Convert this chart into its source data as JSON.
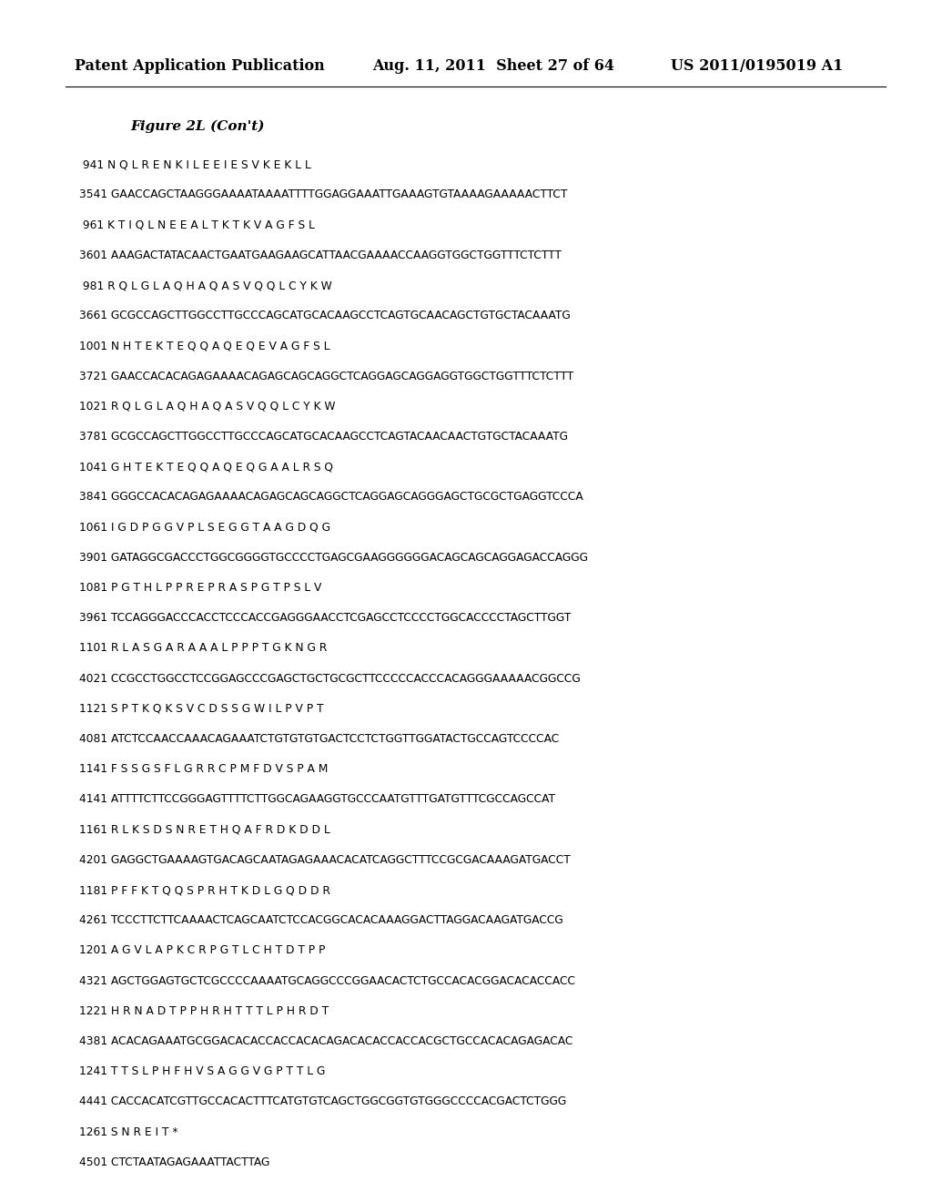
{
  "header_left": "Patent Application Publication",
  "header_middle": "Aug. 11, 2011  Sheet 27 of 64",
  "header_right": "US 2011/0195019 A1",
  "figure_label": "Figure 2L (Con't)",
  "lines": [
    " 941 N Q L R E N K I L E E I E S V K E K L L",
    "3541 GAACCAGCTAAGGGAAAATAAAATTTTGGAGGAAATTGAAAGTGTAAAAGAAAAACTTCT",
    " 961 K T I Q L N E E A L T K T K V A G F S L",
    "3601 AAAGACTATACAACTGAATGAAGAAGCATTAACGAAAACCAAGGTGGCTGGTTTCTCTTT",
    " 981 R Q L G L A Q H A Q A S V Q Q L C Y K W",
    "3661 GCGCCAGCTTGGCCTTGCCCAGCATGCACAAGCCTCAGTGCAACAGCTGTGCTACAAATG",
    "1001 N H T E K T E Q Q A Q E Q E V A G F S L",
    "3721 GAACCACACAGAGAAAACAGAGCAGCAGGCTCAGGAGCAGGAGGTGGCTGGTTTCTCTTT",
    "1021 R Q L G L A Q H A Q A S V Q Q L C Y K W",
    "3781 GCGCCAGCTTGGCCTTGCCCAGCATGCACAAGCCTCAGTACAACAACTGTGCTACAAATG",
    "1041 G H T E K T E Q Q A Q E Q G A A L R S Q",
    "3841 GGGCCACACAGAGAAAACAGAGCAGCAGGCTCAGGAGCAGGGAGCTGCGCTGAGGTCCCA",
    "1061 I G D P G G V P L S E G G T A A G D Q G",
    "3901 GATAGGCGACCCTGGCGGGGTGCCCCTGAGCGAAGGGGGGACAGCAGCAGGAGACCAGGG",
    "1081 P G T H L P P R E P R A S P G T P S L V",
    "3961 TCCAGGGACCCACCTCCCACCGAGGGAACCTCGAGCCTCCCCTGGCACCCCTAGCTTGGT",
    "1101 R L A S G A R A A A L P P P T G K N G R",
    "4021 CCGCCTGGCCTCCGGAGCCCGAGCTGCTGCGCTTCCCCCACCCACAGGGAAAAACGGCCG",
    "1121 S P T K Q K S V C D S S G W I L P V P T",
    "4081 ATCTCCAACCAAACAGAAATCTGTGTGTGACTCCTCTGGTTGGATACTGCCAGTCCCCAC",
    "1141 F S S G S F L G R R C P M F D V S P A M",
    "4141 ATTTTCTTCCGGGAGTTTTCTTGGCAGAAGGTGCCCAATGTTTGATGTTTCGCCAGCCAT",
    "1161 R L K S D S N R E T H Q A F R D K D D L",
    "4201 GAGGCTGAAAAGTGACAGCAATAGAGAAACACATCAGGCTTTCCGCGACAAAGATGACCT",
    "1181 P F F K T Q Q S P R H T K D L G Q D D R",
    "4261 TCCCTTCTTCAAAACTCAGCAATCTCCACGGCACACAAAGGACTTAGGACAAGATGACCG",
    "1201 A G V L A P K C R P G T L C H T D T P P",
    "4321 AGCTGGAGTGCTCGCCCCAAAATGCAGGCCCGGAACACTCTGCCACACGGACACACCACC",
    "1221 H R N A D T P P H R H T T T L P H R D T",
    "4381 ACACAGAAATGCGGACACACCACCACACAGACACACCACCACGCTGCCACACAGAGACAC",
    "1241 T T S L P H F H V S A G G V G P T T L G",
    "4441 CACCACATCGTTGCCACACTTTCATGTGTCAGCTGGCGGTGTGGGCCCCACGACTCTGGG",
    "1261 S N R E I T *",
    "4501 CTCTAATAGAGAAATTACTTAG"
  ],
  "background_color": "#ffffff",
  "text_color": "#000000",
  "header_font_size": 11.5,
  "figure_label_font_size": 11,
  "sequence_font_size": 8.8
}
